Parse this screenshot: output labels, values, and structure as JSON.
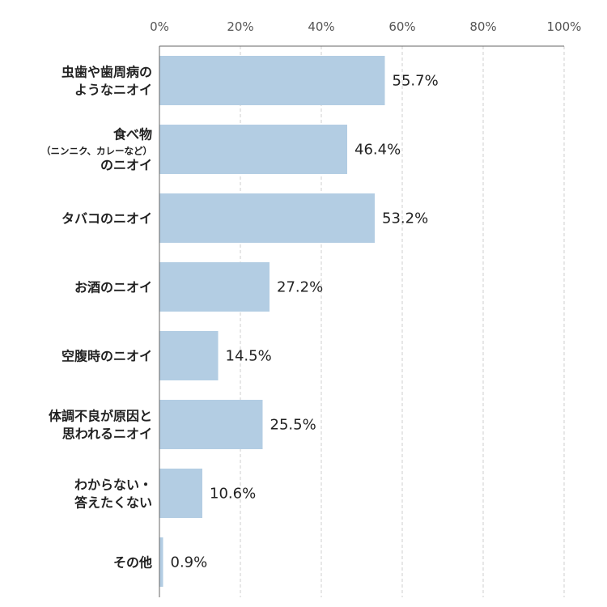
{
  "chart_data": {
    "type": "bar",
    "orientation": "horizontal",
    "title": "",
    "xlabel": "",
    "ylabel": "",
    "xlim": [
      0,
      100
    ],
    "tick_labels": [
      "0%",
      "20%",
      "40%",
      "60%",
      "80%",
      "100%"
    ],
    "tick_values": [
      0,
      20,
      40,
      60,
      80,
      100
    ],
    "grid": "vertical dashed",
    "bar_color": "#b3cde3",
    "categories": [
      {
        "lines": [
          "虫歯や歯周病の",
          "ようなニオイ"
        ],
        "small": [
          false,
          false
        ]
      },
      {
        "lines": [
          "食べ物",
          "（ニンニク、カレーなど）",
          "のニオイ"
        ],
        "small": [
          false,
          true,
          false
        ]
      },
      {
        "lines": [
          "タバコのニオイ"
        ],
        "small": [
          false
        ]
      },
      {
        "lines": [
          "お酒のニオイ"
        ],
        "small": [
          false
        ]
      },
      {
        "lines": [
          "空腹時のニオイ"
        ],
        "small": [
          false
        ]
      },
      {
        "lines": [
          "体調不良が原因と",
          "思われるニオイ"
        ],
        "small": [
          false,
          false
        ]
      },
      {
        "lines": [
          "わからない・",
          "答えたくない"
        ],
        "small": [
          false,
          false
        ]
      },
      {
        "lines": [
          "その他"
        ],
        "small": [
          false
        ]
      }
    ],
    "values": [
      55.7,
      46.4,
      53.2,
      27.2,
      14.5,
      25.5,
      10.6,
      0.9
    ],
    "value_labels": [
      "55.7%",
      "46.4%",
      "53.2%",
      "27.2%",
      "14.5%",
      "25.5%",
      "10.6%",
      "0.9%"
    ]
  }
}
